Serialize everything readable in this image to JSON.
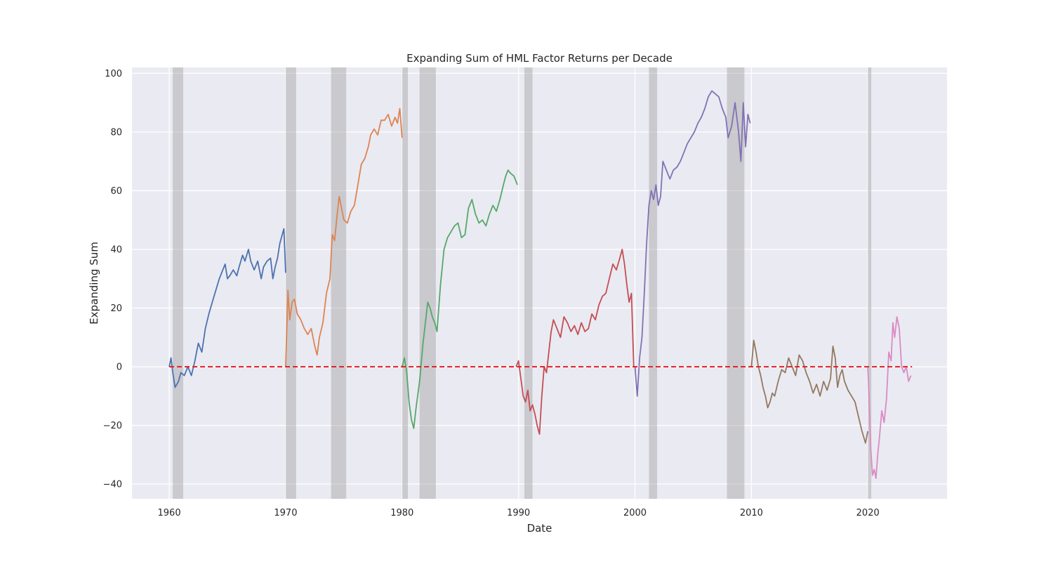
{
  "chart_data": {
    "type": "line",
    "title": "Expanding Sum of HML Factor Returns per Decade",
    "xlabel": "Date",
    "ylabel": "Expanding Sum",
    "xlim": [
      1956.8,
      2026.8
    ],
    "ylim": [
      -45,
      102
    ],
    "x_ticks": [
      1960,
      1970,
      1980,
      1990,
      2000,
      2010,
      2020
    ],
    "x_tick_labels": [
      "1960",
      "1970",
      "1980",
      "1990",
      "2000",
      "2010",
      "2020"
    ],
    "y_ticks": [
      -40,
      -20,
      0,
      20,
      40,
      60,
      80,
      100
    ],
    "y_tick_labels": [
      "−40",
      "−20",
      "0",
      "20",
      "40",
      "60",
      "80",
      "100"
    ],
    "grid": true,
    "background_color": "#eaeaf2",
    "reference_line": {
      "y": 0,
      "x_start": 1960.0,
      "x_end": 2023.8,
      "color": "#e41a1c",
      "style": "dashed"
    },
    "shaded_regions": [
      {
        "start": 1960.3,
        "end": 1961.2
      },
      {
        "start": 1970.0,
        "end": 1970.9
      },
      {
        "start": 1973.9,
        "end": 1975.2
      },
      {
        "start": 1980.0,
        "end": 1980.5
      },
      {
        "start": 1981.5,
        "end": 1982.9
      },
      {
        "start": 1990.5,
        "end": 1991.2
      },
      {
        "start": 2001.2,
        "end": 2001.9
      },
      {
        "start": 2007.9,
        "end": 2009.4
      },
      {
        "start": 2020.0,
        "end": 2020.3
      }
    ],
    "series": [
      {
        "color": "#4c72b0",
        "x": [
          1960.0,
          1960.15,
          1960.3,
          1960.5,
          1960.8,
          1961.0,
          1961.3,
          1961.6,
          1961.9,
          1962.2,
          1962.5,
          1962.8,
          1963.1,
          1963.4,
          1963.7,
          1964.0,
          1964.3,
          1964.6,
          1964.8,
          1965.0,
          1965.2,
          1965.5,
          1965.8,
          1966.0,
          1966.3,
          1966.5,
          1966.8,
          1967.0,
          1967.3,
          1967.6,
          1967.9,
          1968.1,
          1968.4,
          1968.7,
          1968.9,
          1969.1,
          1969.3,
          1969.5,
          1969.7,
          1969.85,
          1970.0
        ],
        "y": [
          0,
          3,
          -2,
          -7,
          -5,
          -2,
          -3,
          0,
          -3,
          2,
          8,
          5,
          13,
          18,
          22,
          26,
          30,
          33,
          35,
          30,
          31,
          33,
          31,
          34,
          38,
          36,
          40,
          36,
          33,
          36,
          30,
          34,
          36,
          37,
          30,
          34,
          37,
          42,
          45,
          47,
          32
        ]
      },
      {
        "color": "#dd8452",
        "x": [
          1970.0,
          1970.2,
          1970.35,
          1970.55,
          1970.75,
          1971.0,
          1971.3,
          1971.6,
          1971.9,
          1972.2,
          1972.5,
          1972.7,
          1972.9,
          1973.2,
          1973.5,
          1973.8,
          1974.0,
          1974.2,
          1974.4,
          1974.6,
          1974.8,
          1975.0,
          1975.3,
          1975.6,
          1975.9,
          1976.2,
          1976.5,
          1976.8,
          1977.1,
          1977.3,
          1977.6,
          1977.9,
          1978.2,
          1978.5,
          1978.8,
          1979.1,
          1979.4,
          1979.6,
          1979.8,
          1980.0
        ],
        "y": [
          0,
          26,
          16,
          22,
          23,
          18,
          16,
          13,
          11,
          13,
          7,
          4,
          10,
          15,
          25,
          30,
          45,
          43,
          51,
          58,
          54,
          50,
          49,
          53,
          55,
          62,
          69,
          71,
          75,
          79,
          81,
          79,
          84,
          84,
          86,
          82,
          85,
          83,
          88,
          78
        ]
      },
      {
        "color": "#55a868",
        "x": [
          1980.0,
          1980.2,
          1980.4,
          1980.6,
          1980.8,
          1981.0,
          1981.2,
          1981.5,
          1981.8,
          1982.0,
          1982.2,
          1982.4,
          1982.6,
          1982.8,
          1983.0,
          1983.3,
          1983.6,
          1983.9,
          1984.2,
          1984.5,
          1984.8,
          1985.1,
          1985.4,
          1985.7,
          1986.0,
          1986.3,
          1986.6,
          1986.9,
          1987.2,
          1987.5,
          1987.8,
          1988.1,
          1988.4,
          1988.7,
          1988.9,
          1989.1,
          1989.3,
          1989.6,
          1989.9
        ],
        "y": [
          0,
          3,
          -2,
          -12,
          -18,
          -21,
          -14,
          -5,
          8,
          15,
          22,
          20,
          17,
          15,
          12,
          28,
          40,
          44,
          46,
          48,
          49,
          44,
          45,
          54,
          57,
          52,
          49,
          50,
          48,
          52,
          55,
          53,
          57,
          62,
          65,
          67,
          66,
          65,
          62
        ]
      },
      {
        "color": "#c44e52",
        "x": [
          1989.8,
          1990.0,
          1990.2,
          1990.4,
          1990.6,
          1990.8,
          1991.0,
          1991.2,
          1991.4,
          1991.6,
          1991.8,
          1992.0,
          1992.2,
          1992.4,
          1992.6,
          1992.8,
          1993.0,
          1993.3,
          1993.6,
          1993.9,
          1994.2,
          1994.5,
          1994.8,
          1995.1,
          1995.4,
          1995.7,
          1996.0,
          1996.3,
          1996.6,
          1996.9,
          1997.2,
          1997.5,
          1997.8,
          1998.1,
          1998.4,
          1998.7,
          1998.9,
          1999.1,
          1999.3,
          1999.5,
          1999.7,
          1999.9
        ],
        "y": [
          0,
          2,
          -4,
          -10,
          -12,
          -8,
          -15,
          -13,
          -16,
          -20,
          -23,
          -10,
          0,
          -2,
          5,
          12,
          16,
          13,
          10,
          17,
          15,
          12,
          14,
          11,
          15,
          12,
          13,
          18,
          16,
          21,
          24,
          25,
          30,
          35,
          33,
          37,
          40,
          35,
          28,
          22,
          25,
          0
        ]
      },
      {
        "color": "#8172b3",
        "x": [
          2000.0,
          2000.2,
          2000.4,
          2000.6,
          2000.8,
          2001.0,
          2001.2,
          2001.4,
          2001.6,
          2001.8,
          2002.0,
          2002.2,
          2002.4,
          2002.6,
          2002.8,
          2003.0,
          2003.3,
          2003.6,
          2003.9,
          2004.2,
          2004.5,
          2004.8,
          2005.1,
          2005.4,
          2005.7,
          2006.0,
          2006.3,
          2006.6,
          2006.9,
          2007.2,
          2007.5,
          2007.8,
          2008.0,
          2008.3,
          2008.6,
          2008.9,
          2009.1,
          2009.3,
          2009.5,
          2009.7,
          2009.9
        ],
        "y": [
          0,
          -10,
          3,
          10,
          25,
          42,
          55,
          60,
          57,
          62,
          55,
          58,
          70,
          68,
          66,
          64,
          67,
          68,
          70,
          73,
          76,
          78,
          80,
          83,
          85,
          88,
          92,
          94,
          93,
          92,
          88,
          85,
          78,
          82,
          90,
          80,
          70,
          90,
          75,
          86,
          83
        ]
      },
      {
        "color": "#937860",
        "x": [
          2010.0,
          2010.2,
          2010.4,
          2010.6,
          2010.8,
          2011.0,
          2011.2,
          2011.4,
          2011.6,
          2011.8,
          2012.0,
          2012.3,
          2012.6,
          2012.9,
          2013.2,
          2013.5,
          2013.8,
          2014.1,
          2014.4,
          2014.7,
          2015.0,
          2015.3,
          2015.6,
          2015.9,
          2016.2,
          2016.5,
          2016.8,
          2017.0,
          2017.2,
          2017.4,
          2017.6,
          2017.8,
          2018.0,
          2018.3,
          2018.6,
          2018.9,
          2019.2,
          2019.5,
          2019.8,
          2020.0
        ],
        "y": [
          0,
          9,
          5,
          0,
          -3,
          -7,
          -10,
          -14,
          -12,
          -9,
          -10,
          -5,
          -1,
          -2,
          3,
          0,
          -3,
          4,
          2,
          -2,
          -5,
          -9,
          -6,
          -10,
          -5,
          -8,
          -4,
          7,
          3,
          -7,
          -3,
          -1,
          -5,
          -8,
          -10,
          -12,
          -17,
          -22,
          -26,
          -22
        ]
      },
      {
        "color": "#da8bc3",
        "x": [
          2020.0,
          2020.1,
          2020.25,
          2020.4,
          2020.55,
          2020.7,
          2020.85,
          2021.0,
          2021.2,
          2021.4,
          2021.6,
          2021.8,
          2022.0,
          2022.15,
          2022.3,
          2022.5,
          2022.7,
          2022.9,
          2023.1,
          2023.3,
          2023.5,
          2023.7
        ],
        "y": [
          0,
          -10,
          -28,
          -37,
          -35,
          -38,
          -30,
          -24,
          -15,
          -19,
          -11,
          5,
          2,
          15,
          10,
          17,
          13,
          0,
          -2,
          0,
          -5,
          -3
        ]
      }
    ]
  }
}
